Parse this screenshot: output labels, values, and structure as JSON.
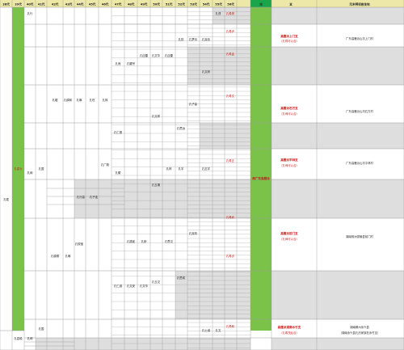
{
  "colors": {
    "header_bg": "#ede8a8",
    "header_green": "#1aa54a",
    "green_col": "#7ac24a",
    "gray_fill": "#dedede",
    "grid": "#9a9a9a",
    "red_text": "#d01818"
  },
  "header": {
    "generations": [
      "38代",
      "39代",
      "40代",
      "41代",
      "42代",
      "43代",
      "44代",
      "45代",
      "46代",
      "47代",
      "48代",
      "49代",
      "50代",
      "51代",
      "52代",
      "53代",
      "54代",
      "55代",
      "56代"
    ],
    "col_branch": "派",
    "col_main": "支",
    "col_address": "元末明初居住地"
  },
  "tree": {
    "root": "孔琨",
    "c39": "孔嘉为",
    "c39b": "孔嘉硕",
    "c40": "孔网",
    "c40b": "孔网",
    "c41a": "孔国",
    "c41b": "孔国",
    "c42a": "孔琚",
    "c42b": "孔耕顺",
    "c43a": "孔耕和",
    "c43b": "孔琳",
    "c44a": "孔琳",
    "c44b": "孔砚宝",
    "c45a": "孔旺",
    "c46a": "孔珠",
    "c46b": "孔广毅",
    "c47a": "孔熊",
    "c47b": "孔耀",
    "c48a": "孔耀宗",
    "c48b": "孔德宣",
    "c49a": "孔应雷",
    "c49b": "孔桥",
    "c50a": "孔文华",
    "c50b": "孔文祥",
    "c51a": "孔应雷",
    "c51b": "孔林",
    "c51c": "孔思汉",
    "c52a": "孔钦",
    "c52b": "孔宇",
    "c53a": "孔梦月",
    "c53b": "孔克钧",
    "c54a": "孔克俭",
    "c54b": "孔士诚",
    "c55a": "孔谨",
    "c55b": "孔文"
  },
  "cells": {
    "r1": "孔行",
    "r2": "孔行高",
    "r3": "孔子连",
    "r4": "孔仁德",
    "r5": "孔仁诚",
    "r6": "孔文安",
    "r7": "孔文华",
    "r8": "孔玉湘",
    "r9": "孔玉汉",
    "r10": "孔思远",
    "r11": "孔思成",
    "r12": "孔子高",
    "r13": "孔文林",
    "r14": "孔志宇"
  },
  "red_cells": {
    "a": "孔希贤",
    "b": "孔希尹",
    "c": "孔希孟",
    "d": "孔希文",
    "e": "孔希正",
    "f": "孔希武",
    "g": "孔希贞",
    "h": "孔希和"
  },
  "branch_label": "南广东高雁派",
  "rows": [
    {
      "main": "高雁派上门支",
      "sub": "（孔祠可以合）",
      "address": "广东高雁派山坑上门村"
    },
    {
      "main": "高雁派石方支",
      "sub": "（孔坤可以合）",
      "address": "广东高雁派山坑石方村"
    },
    {
      "main": "高雁派平林支",
      "sub": "（孔坤可以合）",
      "address": "广东高雁派山坑平林村"
    },
    {
      "main": "高雁派前门支",
      "sub": "（孔坤可以合）",
      "address": "湖南株洲茶陵县前门村"
    },
    {
      "main": "高雁派湖南水竹支",
      "sub": "（孔希茂后合）",
      "address": "湖南郴州永兴县",
      "address2": "（湖南永兴县孔氏家族在永竹支）"
    }
  ]
}
